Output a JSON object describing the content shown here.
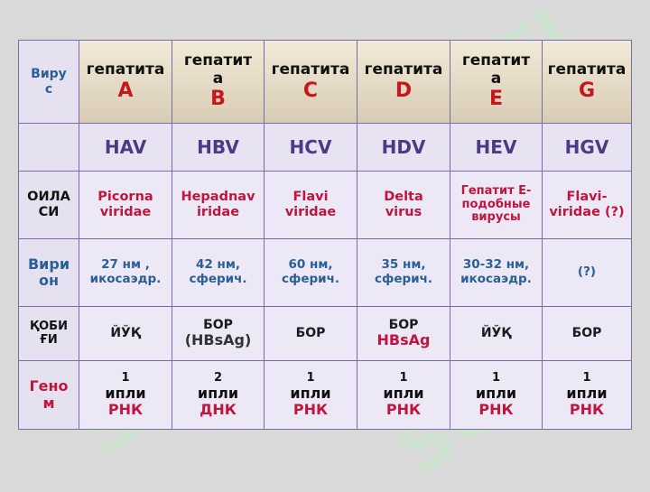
{
  "watermark": "SOFI",
  "header": {
    "label": [
      "Виру",
      "с"
    ],
    "cols": [
      {
        "lines": [
          "гепатита"
        ],
        "letter": "A"
      },
      {
        "lines": [
          "гепатит",
          "а"
        ],
        "letter": "B"
      },
      {
        "lines": [
          "гепатита"
        ],
        "letter": "C"
      },
      {
        "lines": [
          "гепатита"
        ],
        "letter": "D"
      },
      {
        "lines": [
          "гепатит",
          "а"
        ],
        "letter": "E"
      },
      {
        "lines": [
          "гепатита"
        ],
        "letter": "G"
      }
    ]
  },
  "abbr": [
    "HAV",
    "HBV",
    "HCV",
    "HDV",
    "HEV",
    "HGV"
  ],
  "family": {
    "label": [
      "ОИЛА",
      "СИ"
    ],
    "values": [
      [
        "Picorna",
        "viridae"
      ],
      [
        "Hepadnav",
        "iridae"
      ],
      [
        "Flavi",
        "viridae"
      ],
      [
        "Delta",
        "virus"
      ],
      [
        "Гепатит Е-",
        "подобные",
        "вирусы"
      ],
      [
        "Flavi-",
        "viridae (?)"
      ]
    ]
  },
  "virion": {
    "label": [
      "Вири",
      "он"
    ],
    "values": [
      [
        "27 нм ,",
        "икосаэдр."
      ],
      [
        "42 нм,",
        "сферич."
      ],
      [
        "60 нм,",
        "сферич."
      ],
      [
        "35 нм,",
        "сферич."
      ],
      [
        "30-32 нм,",
        "икосаэдр."
      ],
      [
        "(?)"
      ]
    ]
  },
  "capsule": {
    "label": [
      "ҚОБИ",
      "ҒИ"
    ],
    "values": [
      {
        "main": "ЙЎҚ",
        "extra": ""
      },
      {
        "main": "БОР",
        "extra": "(HBsAg)"
      },
      {
        "main": "БОР",
        "extra": ""
      },
      {
        "main": "БОР",
        "extra": "HBsAg"
      },
      {
        "main": "ЙЎҚ",
        "extra": ""
      },
      {
        "main": "БОР",
        "extra": ""
      }
    ]
  },
  "genome": {
    "label": [
      "Гено",
      "м"
    ],
    "values": [
      {
        "num": "1",
        "type": "ипли",
        "acid": "РНК"
      },
      {
        "num": "2",
        "type": "ипли",
        "acid": "ДНК"
      },
      {
        "num": "1",
        "type": "ипли",
        "acid": "РНК"
      },
      {
        "num": "1",
        "type": "ипли",
        "acid": "РНК"
      },
      {
        "num": "1",
        "type": "ипли",
        "acid": "РНК"
      },
      {
        "num": "1",
        "type": "ипли",
        "acid": "РНК"
      }
    ]
  }
}
